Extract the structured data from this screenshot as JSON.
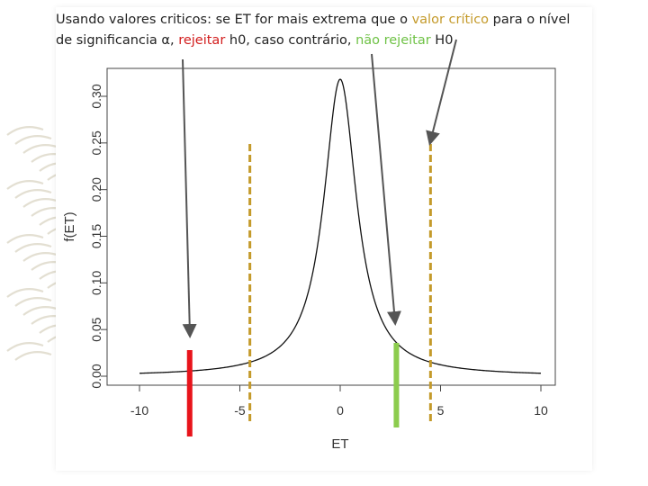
{
  "caption": {
    "part1": "Usando valores criticos: se ET for mais extrema que o ",
    "valor_critico": "valor crítico",
    "part2": " para o nível",
    "part3": "de significancia α, ",
    "rejeitar": "rejeitar",
    "part4": " h0, caso contrário, ",
    "nao_rejeitar": "não rejeitar",
    "part5": " H0"
  },
  "colors": {
    "critical": "#c49a2a",
    "reject": "#e8141b",
    "accept": "#8ccc4d",
    "curve": "#111111",
    "arrow": "#555555"
  },
  "chart_data": {
    "type": "line",
    "xlabel": "ET",
    "ylabel": "f(ET)",
    "xlim": [
      -10,
      10
    ],
    "ylim": [
      0,
      0.3
    ],
    "xticks": [
      -10,
      -5,
      0,
      5,
      10
    ],
    "yticks": [
      "0.00",
      "0.05",
      "0.10",
      "0.15",
      "0.20",
      "0.25",
      "0.30"
    ],
    "x_tick_labels": [
      "-10",
      "-5",
      "0",
      "5",
      "10"
    ],
    "distribution": "Cauchy (location 0, scale 1)",
    "critical_values": [
      -4.5,
      4.5
    ],
    "reject_statistic": -7.5,
    "nonreject_statistic": 2.8,
    "grid": false,
    "legend": "none"
  }
}
